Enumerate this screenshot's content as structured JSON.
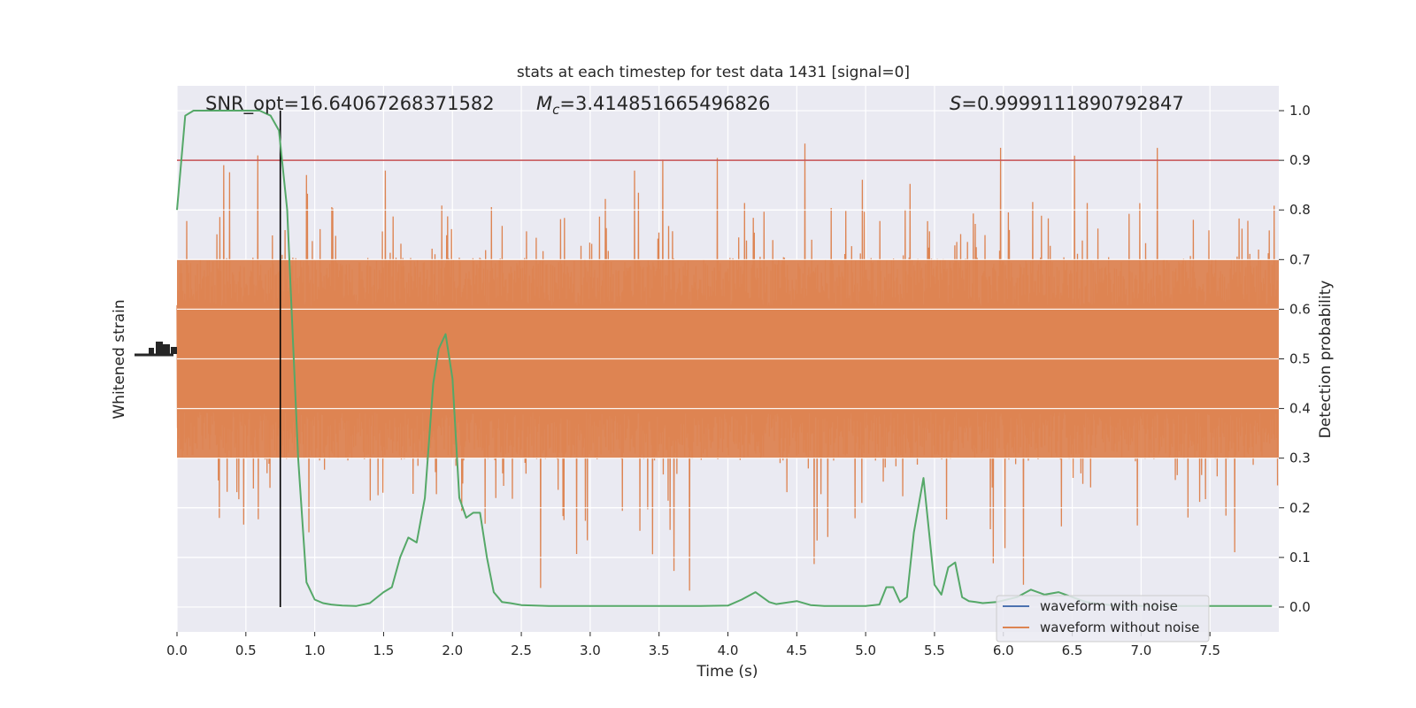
{
  "chart_data": {
    "type": "line",
    "title": "stats at each timestep for test data 1431 [signal=0]",
    "xlabel": "Time (s)",
    "ylabel_left": "Whitened strain",
    "ylabel_right": "Detection probability",
    "xlim": [
      0.0,
      8.0
    ],
    "ylim_right": [
      -0.05,
      1.05
    ],
    "x_ticks": [
      0.0,
      0.5,
      1.0,
      1.5,
      2.0,
      2.5,
      3.0,
      3.5,
      4.0,
      4.5,
      5.0,
      5.5,
      6.0,
      6.5,
      7.0,
      7.5
    ],
    "x_tick_labels": [
      "0.0",
      "0.5",
      "1.0",
      "1.5",
      "2.0",
      "2.5",
      "3.0",
      "3.5",
      "4.0",
      "4.5",
      "5.0",
      "5.5",
      "6.0",
      "6.5",
      "7.0",
      "7.5"
    ],
    "right_ticks": [
      0.0,
      0.1,
      0.2,
      0.3,
      0.4,
      0.5,
      0.6,
      0.7,
      0.8,
      0.9,
      1.0
    ],
    "right_tick_labels": [
      "0.0",
      "0.1",
      "0.2",
      "0.3",
      "0.4",
      "0.5",
      "0.6",
      "0.7",
      "0.8",
      "0.9",
      "1.0"
    ],
    "grid": true,
    "legend_position": "lower-right",
    "threshold": 0.9,
    "marker_time": 0.75,
    "annotations": {
      "snr": "SNR_opt=16.64067268371582",
      "mc_symbol": "M",
      "mc_sub": "c",
      "mc_value": "=3.414851665496826",
      "s_symbol": "S",
      "s_value": "=0.9999111890792847"
    },
    "series": [
      {
        "name": "waveform with noise",
        "color": "#4c72b0",
        "description_values": []
      },
      {
        "name": "waveform without noise",
        "color": "#dd8452"
      },
      {
        "color": "#55a868",
        "x": [
          0.0,
          0.06,
          0.12,
          0.2,
          0.3,
          0.4,
          0.5,
          0.6,
          0.68,
          0.74,
          0.8,
          0.88,
          0.94,
          1.0,
          1.06,
          1.12,
          1.2,
          1.3,
          1.4,
          1.5,
          1.56,
          1.62,
          1.68,
          1.74,
          1.8,
          1.86,
          1.9,
          1.95,
          2.0,
          2.05,
          2.1,
          2.15,
          2.2,
          2.25,
          2.3,
          2.36,
          2.42,
          2.5,
          2.6,
          2.7,
          2.8,
          3.0,
          3.2,
          3.4,
          3.6,
          3.8,
          4.0,
          4.1,
          4.2,
          4.25,
          4.3,
          4.35,
          4.4,
          4.5,
          4.6,
          4.7,
          4.8,
          5.0,
          5.1,
          5.15,
          5.2,
          5.25,
          5.3,
          5.35,
          5.42,
          5.5,
          5.55,
          5.6,
          5.65,
          5.7,
          5.75,
          5.8,
          5.85,
          5.95,
          6.1,
          6.2,
          6.3,
          6.4,
          6.5,
          6.6,
          6.8,
          7.0,
          7.2,
          7.4,
          7.6,
          7.8,
          7.95
        ],
        "y": [
          0.8,
          0.99,
          1.0,
          1.0,
          1.0,
          1.0,
          1.0,
          1.0,
          0.99,
          0.96,
          0.8,
          0.3,
          0.05,
          0.015,
          0.008,
          0.005,
          0.003,
          0.002,
          0.008,
          0.03,
          0.04,
          0.1,
          0.14,
          0.13,
          0.22,
          0.45,
          0.52,
          0.55,
          0.46,
          0.22,
          0.18,
          0.19,
          0.19,
          0.1,
          0.03,
          0.01,
          0.008,
          0.004,
          0.003,
          0.002,
          0.002,
          0.002,
          0.002,
          0.002,
          0.002,
          0.002,
          0.003,
          0.015,
          0.03,
          0.02,
          0.01,
          0.006,
          0.008,
          0.012,
          0.004,
          0.002,
          0.002,
          0.002,
          0.005,
          0.04,
          0.04,
          0.01,
          0.02,
          0.15,
          0.26,
          0.045,
          0.025,
          0.08,
          0.09,
          0.02,
          0.012,
          0.01,
          0.008,
          0.01,
          0.02,
          0.035,
          0.025,
          0.03,
          0.02,
          0.01,
          0.003,
          0.002,
          0.002,
          0.002,
          0.002,
          0.002,
          0.002
        ]
      }
    ],
    "threshold_color": "#c44e52",
    "marker_color": "#000000"
  }
}
